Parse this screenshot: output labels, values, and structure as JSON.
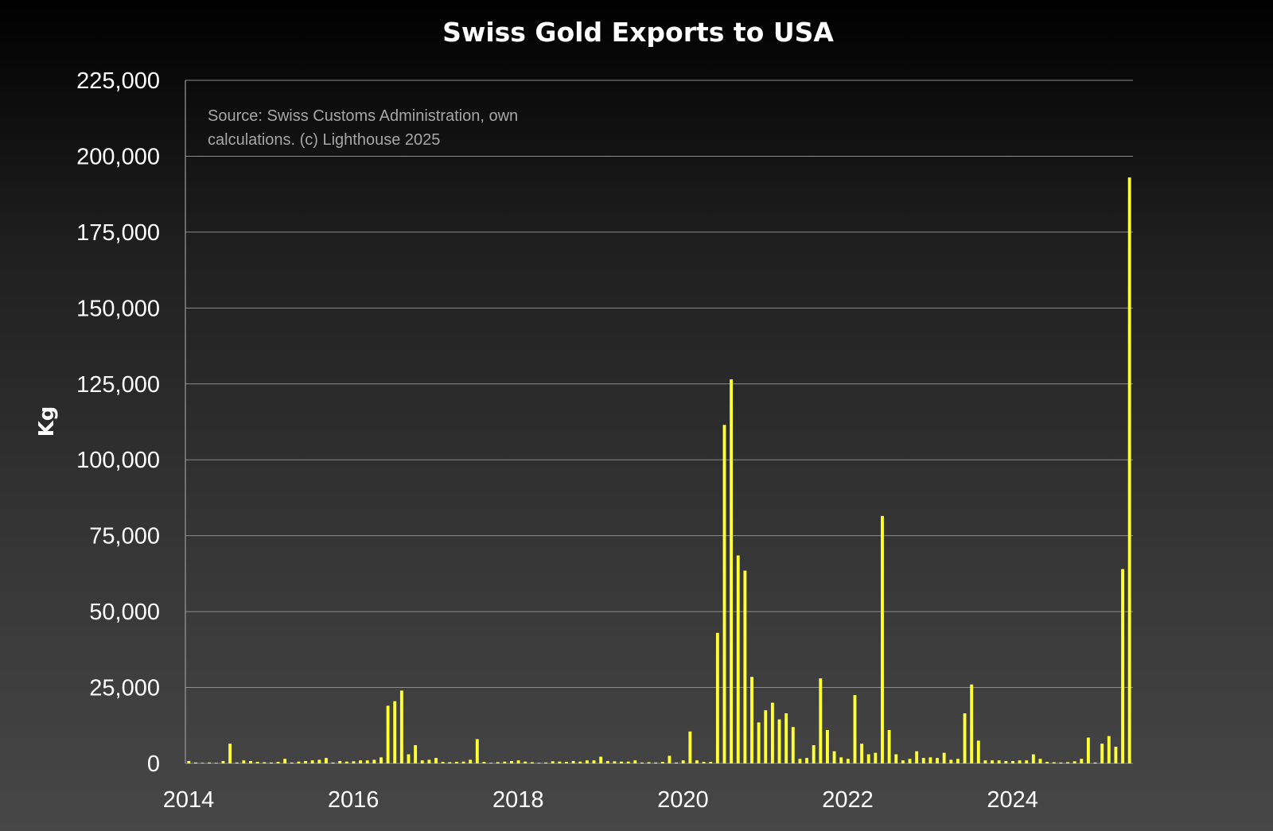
{
  "chart_data": {
    "type": "bar",
    "title": "Swiss Gold Exports to USA",
    "xlabel": "",
    "ylabel": "Kg",
    "source_note": [
      "Source: Swiss Customs Administration, own",
      "calculations. (c) Lighthouse 2025"
    ],
    "ylim": [
      0,
      225000
    ],
    "yticks": [
      0,
      25000,
      50000,
      75000,
      100000,
      125000,
      150000,
      175000,
      200000,
      225000
    ],
    "ytick_labels": [
      "0",
      "25,000",
      "50,000",
      "75,000",
      "100,000",
      "125,000",
      "150,000",
      "175,000",
      "200,000",
      "225,000"
    ],
    "xticks": [
      "2014",
      "2016",
      "2018",
      "2020",
      "2022",
      "2024"
    ],
    "x_start": "2014-01",
    "frequency": "monthly",
    "grid": true,
    "bar_color": "#ffff33",
    "series": [
      {
        "name": "Swiss Gold Exports to USA (Kg)",
        "values": [
          800,
          300,
          200,
          300,
          200,
          800,
          6500,
          300,
          1000,
          800,
          500,
          400,
          300,
          500,
          1500,
          300,
          600,
          800,
          1000,
          1200,
          1800,
          300,
          800,
          600,
          700,
          1000,
          1000,
          1200,
          2000,
          19000,
          20500,
          24000,
          3000,
          6000,
          1000,
          1200,
          1800,
          500,
          400,
          500,
          600,
          1200,
          8000,
          500,
          200,
          400,
          600,
          800,
          1000,
          600,
          400,
          200,
          300,
          700,
          600,
          500,
          800,
          600,
          1000,
          1000,
          2200,
          800,
          700,
          600,
          600,
          1000,
          300,
          400,
          300,
          500,
          2500,
          300,
          1000,
          10500,
          1000,
          500,
          500,
          43000,
          111500,
          126500,
          68500,
          63500,
          28500,
          13500,
          17500,
          20000,
          14500,
          16500,
          12000,
          1500,
          1800,
          6000,
          28000,
          11000,
          4000,
          2000,
          1500,
          22500,
          6500,
          3000,
          3500,
          81500,
          11000,
          3000,
          1000,
          1500,
          4000,
          1800,
          2000,
          1800,
          3500,
          1200,
          1500,
          16500,
          26000,
          7500,
          1000,
          1000,
          1000,
          800,
          800,
          1000,
          1000,
          3000,
          1500,
          500,
          400,
          300,
          400,
          700,
          1500,
          8500,
          300,
          6500,
          9000,
          5500,
          64000,
          193000
        ]
      }
    ]
  }
}
